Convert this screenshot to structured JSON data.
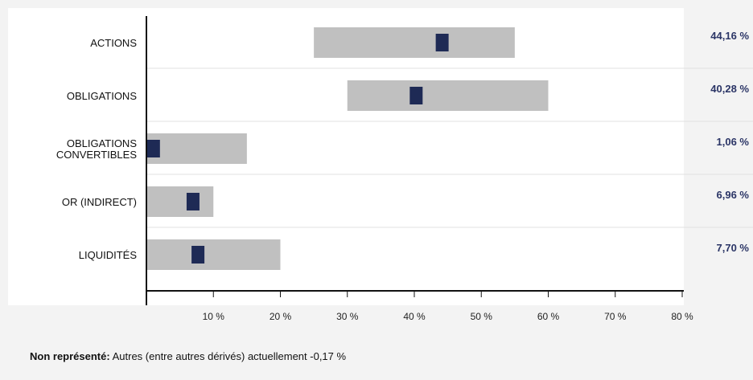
{
  "chart_data": {
    "type": "bar",
    "subtype": "range-bar-with-marker",
    "categories": [
      [
        "ACTIONS"
      ],
      [
        "OBLIGATIONS"
      ],
      [
        "OBLIGATIONS",
        "CONVERTIBLES"
      ],
      [
        "OR (INDIRECT)"
      ],
      [
        "LIQUIDITÉS"
      ]
    ],
    "ranges": [
      [
        25,
        55
      ],
      [
        30,
        60
      ],
      [
        0,
        15
      ],
      [
        0,
        10
      ],
      [
        0,
        20
      ]
    ],
    "values": [
      44.16,
      40.28,
      1.06,
      6.96,
      7.7
    ],
    "value_labels": [
      "44,16 %",
      "40,28 %",
      "1,06 %",
      "6,96 %",
      "7,70 %"
    ],
    "xlim": [
      0,
      80
    ],
    "xticks": [
      10,
      20,
      30,
      40,
      50,
      60,
      70,
      80
    ],
    "xtick_labels": [
      "10 %",
      "20 %",
      "30 %",
      "40 %",
      "50 %",
      "60 %",
      "70 %",
      "80 %"
    ],
    "grid": "horizontal separators",
    "colors": {
      "background": "#f3f3f3",
      "plot_background": "#ffffff",
      "range_bar": "#c0c0c0",
      "marker": "#1e2a55",
      "value_text": "#2b3566",
      "axis": "#111111"
    }
  },
  "footnote": {
    "bold": "Non représenté:",
    "text": " Autres (entre autres dérivés) actuellement -0,17 %"
  }
}
